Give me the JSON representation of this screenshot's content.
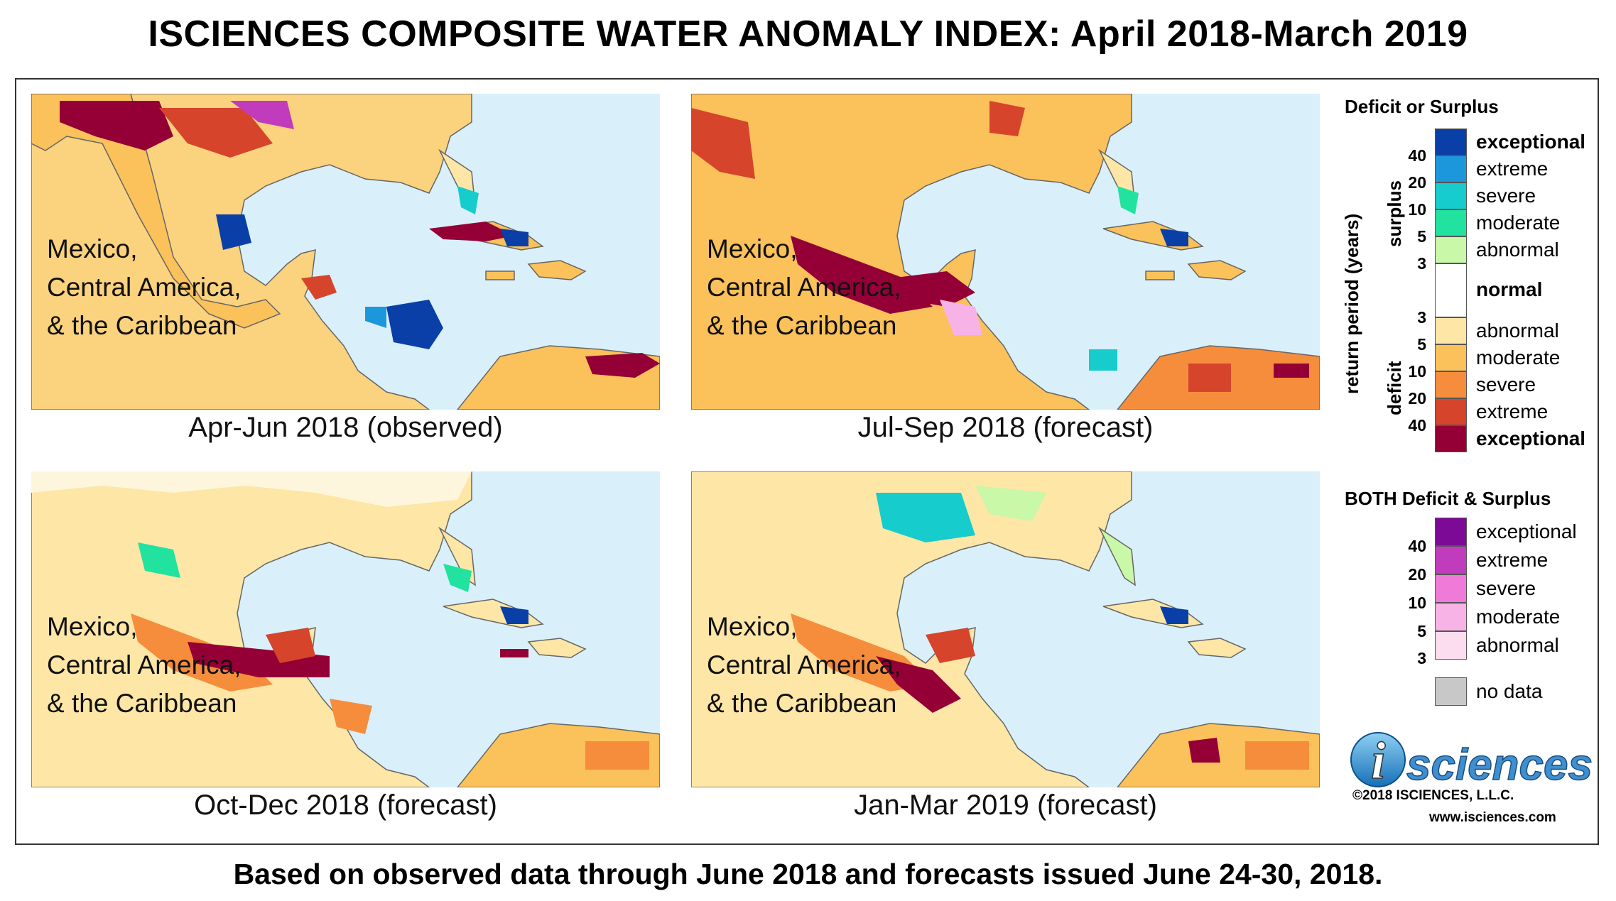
{
  "title": "ISCIENCES COMPOSITE WATER ANOMALY INDEX: April 2018-March 2019",
  "footer": "Based on observed data through June 2018 and forecasts issued June 24-30, 2018.",
  "panels": [
    {
      "region_line1": "Mexico,",
      "region_line2": "Central America,",
      "region_line3": "& the Caribbean",
      "caption": "Apr-Jun 2018 (observed)"
    },
    {
      "region_line1": "Mexico,",
      "region_line2": "Central America,",
      "region_line3": "& the Caribbean",
      "caption": "Jul-Sep 2018 (forecast)"
    },
    {
      "region_line1": "Mexico,",
      "region_line2": "Central America,",
      "region_line3": "& the Caribbean",
      "caption": "Oct-Dec 2018 (forecast)"
    },
    {
      "region_line1": "Mexico,",
      "region_line2": "Central America,",
      "region_line3": "& the Caribbean",
      "caption": "Jan-Mar 2019 (forecast)"
    }
  ],
  "legend": {
    "deficit_surplus_title": "Deficit or Surplus",
    "both_title": "BOTH Deficit & Surplus",
    "axis_label": "return period (years)",
    "surplus_label": "surplus",
    "deficit_label": "deficit",
    "surplus_ticks": [
      "40",
      "20",
      "10",
      "5",
      "3"
    ],
    "deficit_ticks": [
      "3",
      "5",
      "10",
      "20",
      "40"
    ],
    "both_ticks": [
      "40",
      "20",
      "10",
      "5",
      "3"
    ],
    "surplus": [
      {
        "label": "exceptional",
        "color": "#0a3fa8"
      },
      {
        "label": "extreme",
        "color": "#1c97dc"
      },
      {
        "label": "severe",
        "color": "#16cccc"
      },
      {
        "label": "moderate",
        "color": "#22e2a0"
      },
      {
        "label": "abnormal",
        "color": "#c8f8a8"
      }
    ],
    "normal": {
      "label": "normal",
      "color": "#ffffff"
    },
    "deficit": [
      {
        "label": "abnormal",
        "color": "#fde6a6"
      },
      {
        "label": "moderate",
        "color": "#fbc15a"
      },
      {
        "label": "severe",
        "color": "#f58d3c"
      },
      {
        "label": "extreme",
        "color": "#d6442c"
      },
      {
        "label": "exceptional",
        "color": "#940035"
      }
    ],
    "both": [
      {
        "label": "exceptional",
        "color": "#7d0a97"
      },
      {
        "label": "extreme",
        "color": "#c03cbc"
      },
      {
        "label": "severe",
        "color": "#f07ad8"
      },
      {
        "label": "moderate",
        "color": "#f8b3e6"
      },
      {
        "label": "abnormal",
        "color": "#fcdcef"
      }
    ],
    "nodata": {
      "label": "no data",
      "color": "#c8c8c8"
    }
  },
  "logo": {
    "letter": "i",
    "text": "sciences"
  },
  "copyright": "©2018 ISCIENCES, L.L.C.",
  "website": "www.isciences.com"
}
